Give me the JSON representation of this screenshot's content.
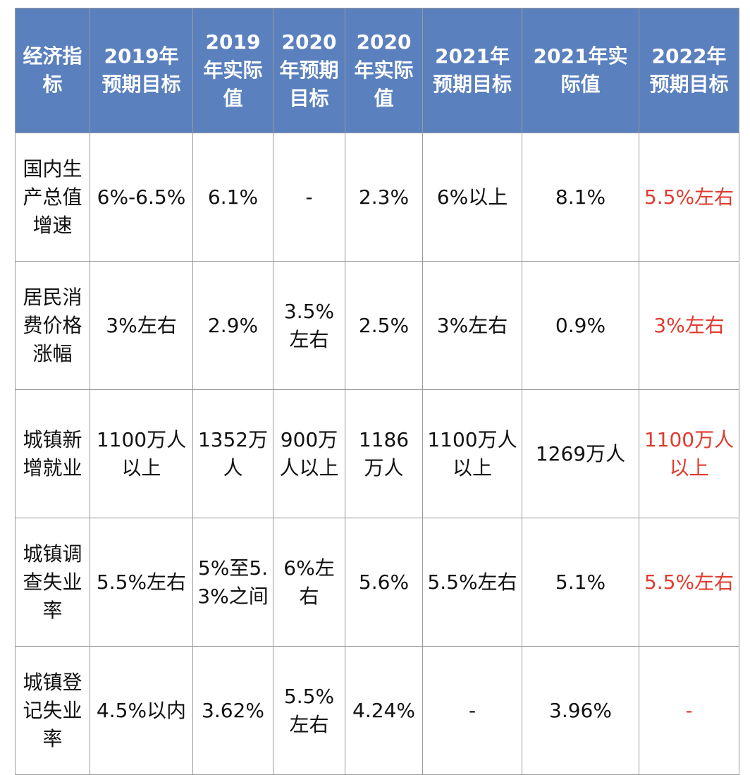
{
  "headers": [
    "经济指标",
    "2019年预期目标",
    "2019年实际值",
    "2020年预期目标",
    "2020年实际值",
    "2021年预期目标",
    "2021年实际值",
    "2022年预期目标"
  ],
  "rows": [
    [
      "国内生产总值增速",
      "6%-6.5%",
      "6.1%",
      "-",
      "2.3%",
      "6%以上",
      "8.1%",
      "5.5%左右"
    ],
    [
      "居民消费价格涨幅",
      "3%左右",
      "2.9%",
      "3.5%左右",
      "2.5%",
      "3%左右",
      "0.9%",
      "3%左右"
    ],
    [
      "城镇新增就业",
      "1100万人以上",
      "1352万人",
      "900万人以上",
      "1186万人",
      "1100万人以上",
      "1269万人",
      "1100万人以上"
    ],
    [
      "城镇调查失业率",
      "5.5%左右",
      "5%至5.3%之间",
      "6%左右",
      "5.6%",
      "5.5%左右",
      "5.1%",
      "5.5%左右"
    ],
    [
      "城镇登记失业率",
      "4.5%以内",
      "3.62%",
      "5.5%左右",
      "4.24%",
      "-",
      "3.96%",
      "-"
    ]
  ],
  "colors": {
    "header_bg": "#5a80be",
    "header_text": "#ffffff",
    "highlight_text": "#e03b2e",
    "border": "#9a9a9a"
  }
}
